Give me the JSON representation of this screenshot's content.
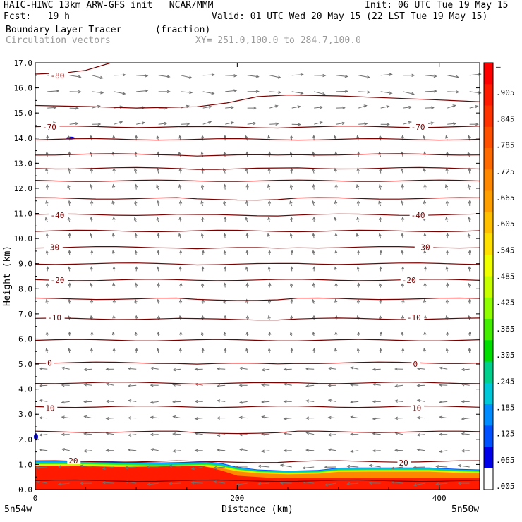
{
  "header": {
    "line1_left": "HAIC-HIWC 13km ARW-GFS init   NCAR/MMM",
    "line1_right": "Init: 06 UTC Tue 19 May 15",
    "line2_left": "Fcst:   19 h",
    "line2_right": "Valid: 01 UTC Wed 20 May 15 (22 LST Tue 19 May 15)",
    "line3_left": "Boundary Layer Tracer",
    "line3_units": "(fraction)",
    "line4_left": "Circulation vectors",
    "line4_xy": "XY= 251.0,100.0 to 284.7,100.0"
  },
  "chart_data": {
    "type": "cross-section",
    "xlabel": "Distance (km)",
    "ylabel": "Height (km)",
    "xlim": [
      0,
      440
    ],
    "ylim": [
      0,
      17
    ],
    "x_ticks": [
      0,
      200,
      400
    ],
    "y_ticks": [
      "0.0",
      "1.0",
      "2.0",
      "3.0",
      "4.0",
      "5.0",
      "6.0",
      "7.0",
      "8.0",
      "9.0",
      "10.0",
      "11.0",
      "12.0",
      "13.0",
      "14.0",
      "15.0",
      "16.0",
      "17.0"
    ],
    "x_endpoints": [
      "5n54w",
      "5n50w"
    ],
    "colorbar_labels": [
      "–",
      ".905",
      ".845",
      ".785",
      ".725",
      ".665",
      ".605",
      ".545",
      ".485",
      ".425",
      ".365",
      ".305",
      ".245",
      ".185",
      ".125",
      ".065",
      ".005"
    ],
    "colorbar_colors": [
      "#ff0000",
      "#ff1a00",
      "#ff3300",
      "#ff5000",
      "#ff6a00",
      "#ff8800",
      "#ffa000",
      "#ffc000",
      "#ffe000",
      "#f0ff00",
      "#c8ff00",
      "#90ff00",
      "#44ee00",
      "#00dd00",
      "#00d08c",
      "#00c8d8",
      "#008cff",
      "#0050ff",
      "#0000e8",
      "#ffffff"
    ],
    "temperature_contour_labels": [
      {
        "label": "-80",
        "x": 15,
        "y": 16.5
      },
      {
        "label": "-70",
        "x": 7,
        "y": 14.45
      },
      {
        "label": "-70",
        "x": 372,
        "y": 14.45
      },
      {
        "label": "-40",
        "x": 15,
        "y": 10.93
      },
      {
        "label": "-40",
        "x": 372,
        "y": 10.93
      },
      {
        "label": "-30",
        "x": 10,
        "y": 9.65
      },
      {
        "label": "-30",
        "x": 377,
        "y": 9.65
      },
      {
        "label": "-20",
        "x": 15,
        "y": 8.35
      },
      {
        "label": "-20",
        "x": 363,
        "y": 8.35
      },
      {
        "label": "-10",
        "x": 12,
        "y": 6.85
      },
      {
        "label": "-10",
        "x": 368,
        "y": 6.85
      },
      {
        "label": "0",
        "x": 12,
        "y": 5.05
      },
      {
        "label": "0",
        "x": 374,
        "y": 5.0
      },
      {
        "label": "10",
        "x": 10,
        "y": 3.25
      },
      {
        "label": "10",
        "x": 373,
        "y": 3.25
      },
      {
        "label": "20",
        "x": 33,
        "y": 1.15
      },
      {
        "label": "20",
        "x": 360,
        "y": 1.07
      }
    ],
    "isotherm_heights": [
      0.35,
      1.12,
      2.3,
      3.3,
      4.25,
      5.05,
      5.95,
      6.8,
      7.6,
      8.35,
      9.0,
      9.65,
      10.3,
      10.95,
      11.6,
      12.3,
      12.8,
      13.35,
      13.95,
      14.45
    ],
    "upper_contour_pts": [
      [
        0,
        15.3
      ],
      [
        60,
        15.25
      ],
      [
        100,
        15.2
      ],
      [
        160,
        15.25
      ],
      [
        190,
        15.4
      ],
      [
        220,
        15.65
      ],
      [
        250,
        15.72
      ],
      [
        300,
        15.68
      ],
      [
        350,
        15.6
      ],
      [
        400,
        15.52
      ],
      [
        440,
        15.45
      ]
    ],
    "top_contour_pts": [
      [
        0,
        16.55
      ],
      [
        30,
        16.6
      ],
      [
        50,
        16.7
      ],
      [
        75,
        17.0
      ]
    ],
    "tracer_top_pts": [
      [
        0,
        1.15
      ],
      [
        40,
        1.15
      ],
      [
        70,
        1.13
      ],
      [
        100,
        1.1
      ],
      [
        125,
        1.08
      ],
      [
        150,
        1.1
      ],
      [
        170,
        1.12
      ],
      [
        185,
        1.05
      ],
      [
        200,
        0.9
      ],
      [
        220,
        0.8
      ],
      [
        250,
        0.75
      ],
      [
        280,
        0.78
      ],
      [
        300,
        0.87
      ],
      [
        330,
        0.88
      ],
      [
        360,
        0.88
      ],
      [
        390,
        0.88
      ],
      [
        420,
        0.82
      ],
      [
        440,
        0.8
      ]
    ],
    "tracer_red_pts": [
      [
        0,
        0.95
      ],
      [
        40,
        0.95
      ],
      [
        80,
        0.9
      ],
      [
        120,
        0.92
      ],
      [
        150,
        0.95
      ],
      [
        165,
        0.95
      ],
      [
        185,
        0.75
      ],
      [
        200,
        0.55
      ],
      [
        240,
        0.45
      ],
      [
        300,
        0.45
      ],
      [
        360,
        0.45
      ],
      [
        440,
        0.45
      ]
    ]
  }
}
